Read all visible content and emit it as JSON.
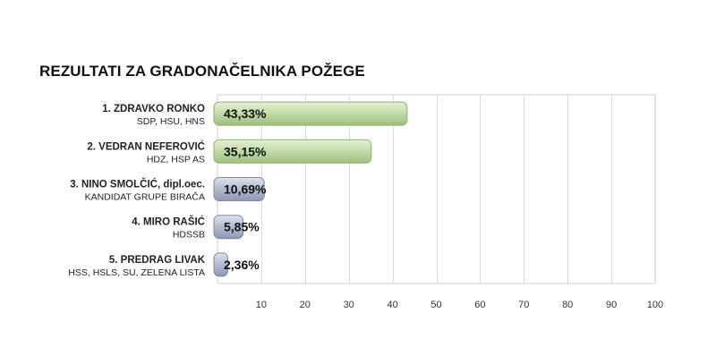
{
  "chart_data": {
    "type": "bar",
    "orientation": "horizontal",
    "title": "REZULTATI ZA GRADONAČELNIKA POŽEGE",
    "categories": [
      {
        "name": "1. ZDRAVKO RONKO",
        "party": "SDP, HSU, HNS"
      },
      {
        "name": "2. VEDRAN NEFEROVIĆ",
        "party": "HDZ, HSP AS"
      },
      {
        "name": "3. NINO SMOLČIĆ, dipl.oec.",
        "party": "KANDIDAT GRUPE BIRAČA"
      },
      {
        "name": "4. MIRO RAŠIĆ",
        "party": "HDSSB"
      },
      {
        "name": "5. PREDRAG LIVAK",
        "party": "HSS, HSLS, SU, ZELENA LISTA"
      }
    ],
    "values": [
      43.33,
      35.15,
      10.69,
      5.85,
      2.36
    ],
    "value_labels": [
      "43,33%",
      "35,15%",
      "10,69%",
      "5,85%",
      "2,36%"
    ],
    "bar_colors": [
      "#b7d39a",
      "#b7d39a",
      "#aab3c8",
      "#aab3c8",
      "#aab3c8"
    ],
    "xlim": [
      0,
      100
    ],
    "xticks": [
      10,
      20,
      30,
      40,
      50,
      60,
      70,
      80,
      90,
      100
    ],
    "xtick_labels": [
      "10",
      "20",
      "30",
      "40",
      "50",
      "60",
      "70",
      "80",
      "90",
      "100"
    ],
    "grid": true,
    "legend": "none"
  }
}
